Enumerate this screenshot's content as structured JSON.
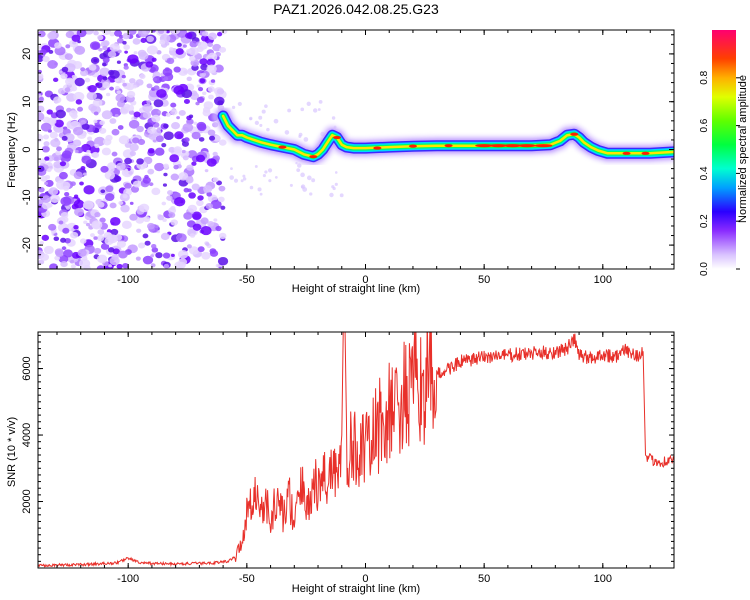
{
  "title": "PAZ1.2026.042.08.25.G23",
  "chart_data": [
    {
      "type": "heatmap",
      "panel": "spectrogram",
      "xlabel": "Height of straight line (km)",
      "ylabel": "Frequency (Hz)",
      "xlim": [
        -138,
        130
      ],
      "ylim": [
        -25,
        25
      ],
      "xticks": [
        -100,
        -50,
        0,
        50,
        100
      ],
      "yticks": [
        -20,
        -10,
        0,
        10,
        20
      ],
      "noise_region_x": [
        -138,
        -60
      ],
      "ridge": {
        "x": [
          -60,
          -58,
          -56,
          -54,
          -52,
          -50,
          -47,
          -44,
          -40,
          -35,
          -30,
          -26,
          -22,
          -20,
          -18,
          -16,
          -14,
          -12,
          -10,
          -8,
          -5,
          0,
          10,
          20,
          30,
          40,
          50,
          60,
          70,
          78,
          82,
          85,
          88,
          90,
          92,
          95,
          98,
          102,
          110,
          120,
          130
        ],
        "y": [
          7,
          5,
          4,
          3,
          3,
          2.5,
          2,
          1.5,
          1,
          0.5,
          0,
          -1,
          -1.5,
          -1,
          0,
          1.5,
          3,
          2.5,
          1,
          0.5,
          0.3,
          0.3,
          0.5,
          0.7,
          0.8,
          0.8,
          0.8,
          0.8,
          0.8,
          1,
          1.8,
          3,
          3.2,
          2.5,
          1.5,
          0.5,
          -0.2,
          -0.8,
          -0.8,
          -0.8,
          -0.5
        ]
      },
      "colorbar": {
        "label": "Normalized spectral amplitude",
        "range": [
          0,
          1
        ],
        "ticks": [
          "0.0",
          "0.2",
          "0.4",
          "0.6",
          "0.8"
        ],
        "colors": [
          "#ffffff",
          "#c9a6ff",
          "#7f00ff",
          "#0000ff",
          "#00c8ff",
          "#00ff80",
          "#80ff00",
          "#ffff00",
          "#ff8000",
          "#ff0000",
          "#ff0060"
        ]
      }
    },
    {
      "type": "line",
      "panel": "snr",
      "xlabel": "Height of straight line (km)",
      "ylabel": "SNR (10 * v/v)",
      "xlim": [
        -138,
        130
      ],
      "ylim": [
        0,
        7100
      ],
      "xticks": [
        -100,
        -50,
        0,
        50,
        100
      ],
      "yticks": [
        2000,
        4000,
        6000
      ],
      "color": "#e8302a",
      "series": [
        {
          "name": "SNR",
          "x": [
            -138,
            -120,
            -105,
            -100,
            -95,
            -80,
            -65,
            -58,
            -54,
            -52,
            -50,
            -48,
            -46,
            -44,
            -42,
            -40,
            -38,
            -36,
            -34,
            -32,
            -30,
            -28,
            -26,
            -24,
            -22,
            -20,
            -18,
            -16,
            -14,
            -12,
            -10,
            -9,
            -8,
            -6,
            -4,
            -2,
            0,
            5,
            10,
            15,
            20,
            25,
            30,
            35,
            40,
            45,
            50,
            60,
            70,
            80,
            85,
            88,
            90,
            95,
            100,
            105,
            110,
            115,
            117,
            118,
            120,
            125,
            130
          ],
          "y": [
            80,
            100,
            150,
            300,
            150,
            120,
            150,
            200,
            400,
            900,
            1600,
            2300,
            2100,
            1700,
            2000,
            1300,
            2000,
            1900,
            1500,
            2200,
            1300,
            2100,
            2500,
            1800,
            2600,
            2300,
            2800,
            2600,
            3200,
            2800,
            3400,
            6800,
            3300,
            3600,
            3500,
            3800,
            3400,
            4200,
            4600,
            5000,
            5300,
            5600,
            5800,
            6000,
            6200,
            6250,
            6350,
            6400,
            6450,
            6500,
            6600,
            6900,
            6400,
            6300,
            6450,
            6350,
            6550,
            6400,
            6500,
            3300,
            3250,
            3200,
            3250
          ]
        }
      ]
    }
  ]
}
